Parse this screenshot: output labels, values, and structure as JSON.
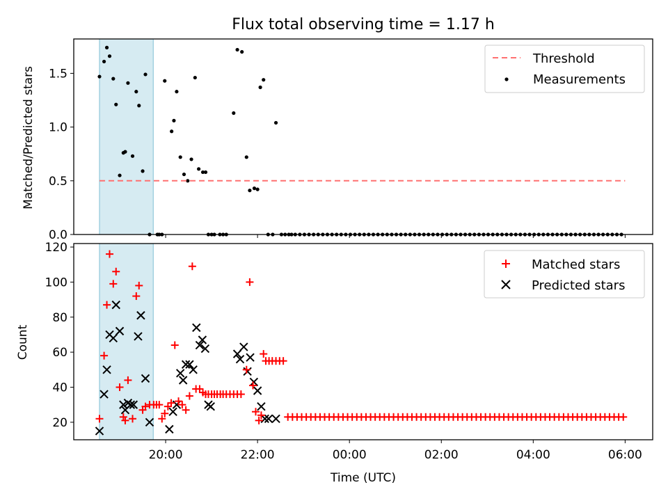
{
  "chart_data": {
    "type": "scatter",
    "title": "Flux total observing time = 1.17 h",
    "xlabel": "Time (UTC)",
    "x_ticks": [
      "20:00",
      "22:00",
      "00:00",
      "02:00",
      "04:00",
      "06:00"
    ],
    "x_range_hours": [
      18.0,
      30.6
    ],
    "highlight_span_hours": [
      18.56,
      19.73
    ],
    "colors": {
      "threshold": "#ff7070",
      "matched": "#ff0000",
      "predicted": "#000000",
      "measurement": "#000000",
      "span": "#add8e6"
    },
    "panels": [
      {
        "ylabel": "Matched/Predicted stars",
        "ylim": [
          0,
          1.82
        ],
        "yticks": [
          "0.0",
          "0.5",
          "1.0",
          "1.5"
        ],
        "legend": [
          "Threshold",
          "Measurements"
        ],
        "legend_position": "top-right",
        "threshold": {
          "name": "Threshold",
          "y": 0.5,
          "x_range_hours": [
            18.56,
            30.0
          ]
        },
        "measurements": {
          "name": "Measurements",
          "x": [
            18.56,
            18.66,
            18.72,
            18.78,
            18.86,
            18.92,
            19.0,
            19.08,
            19.12,
            19.18,
            19.28,
            19.36,
            19.42,
            19.5,
            19.56,
            19.65,
            19.82,
            19.86,
            19.92,
            19.98,
            20.13,
            20.18,
            20.24,
            20.32,
            20.4,
            20.48,
            20.56,
            20.64,
            20.72,
            20.81,
            20.87,
            20.93,
            21.0,
            21.06,
            21.18,
            21.25,
            21.32,
            21.48,
            21.56,
            21.66,
            21.76,
            21.83,
            21.93,
            22.0,
            22.06,
            22.13,
            22.23,
            22.33,
            22.4,
            22.52,
            22.6,
            22.68,
            22.74
          ],
          "y": [
            1.47,
            1.61,
            1.74,
            1.66,
            1.45,
            1.21,
            0.55,
            0.76,
            0.77,
            1.41,
            0.73,
            1.33,
            1.2,
            0.59,
            1.49,
            0.0,
            0.0,
            0.0,
            0.0,
            1.43,
            0.96,
            1.06,
            1.33,
            0.72,
            0.56,
            0.5,
            0.7,
            1.46,
            0.61,
            0.58,
            0.58,
            0.0,
            0.0,
            0.0,
            0.0,
            0.0,
            0.0,
            1.13,
            1.72,
            1.7,
            0.72,
            0.41,
            0.43,
            0.42,
            1.37,
            1.44,
            0.0,
            0.0,
            1.04,
            0.0,
            0.0,
            0.0,
            0.0
          ],
          "tail_zero_from_hours": 22.82,
          "tail_zero_step_hours": 0.1,
          "tail_zero_to_hours": 30.0
        }
      },
      {
        "ylabel": "Count",
        "ylim": [
          10,
          122
        ],
        "yticks": [
          "20",
          "40",
          "60",
          "80",
          "100",
          "120"
        ],
        "legend": [
          "Matched stars",
          "Predicted stars"
        ],
        "legend_position": "top-right",
        "matched": {
          "name": "Matched stars",
          "x": [
            18.56,
            18.66,
            18.72,
            18.78,
            18.86,
            18.92,
            19.0,
            19.08,
            19.12,
            19.18,
            19.28,
            19.36,
            19.42,
            19.5,
            19.56,
            19.65,
            19.74,
            19.8,
            19.86,
            19.92,
            19.98,
            20.05,
            20.12,
            20.2,
            20.28,
            20.36,
            20.44,
            20.52,
            20.58,
            20.66,
            20.74,
            20.81,
            20.87,
            20.93,
            21.0,
            21.06,
            21.12,
            21.19,
            21.25,
            21.32,
            21.4,
            21.48,
            21.56,
            21.64,
            21.76,
            21.83,
            21.9,
            21.96,
            22.03,
            22.08,
            22.13,
            22.18,
            22.25,
            22.32,
            22.4,
            22.48,
            22.56
          ],
          "y": [
            22,
            58,
            87,
            116,
            99,
            106,
            40,
            23,
            21,
            44,
            22,
            92,
            98,
            27,
            29,
            30,
            30,
            30,
            30,
            22,
            25,
            29,
            31,
            64,
            32,
            30,
            27,
            35,
            109,
            39,
            39,
            37,
            36,
            36,
            36,
            36,
            36,
            36,
            36,
            36,
            36,
            36,
            36,
            36,
            50,
            100,
            41,
            26,
            21,
            24,
            59,
            55,
            55,
            55,
            55,
            55,
            55
          ],
          "tail_from_hours": 22.66,
          "tail_step_hours": 0.1,
          "tail_to_hours": 30.0,
          "tail_value": 23
        },
        "predicted": {
          "name": "Predicted stars",
          "x": [
            18.56,
            18.66,
            18.72,
            18.78,
            18.86,
            18.92,
            19.0,
            19.08,
            19.12,
            19.18,
            19.24,
            19.3,
            19.4,
            19.46,
            19.56,
            19.65,
            20.08,
            20.16,
            20.24,
            20.32,
            20.38,
            20.44,
            20.52,
            20.6,
            20.67,
            20.74,
            20.8,
            20.86,
            20.93,
            20.98,
            21.56,
            21.62,
            21.7,
            21.78,
            21.84,
            21.92,
            22.0,
            22.08,
            22.16,
            22.24,
            22.4
          ],
          "y": [
            15,
            36,
            50,
            70,
            68,
            87,
            72,
            30,
            27,
            31,
            30,
            30,
            69,
            81,
            45,
            20,
            16,
            26,
            30,
            48,
            44,
            53,
            53,
            50,
            74,
            64,
            67,
            62,
            30,
            29,
            59,
            56,
            63,
            49,
            57,
            43,
            38,
            29,
            22,
            22,
            22
          ],
          "tail_note": "",
          "tail_from_hours": 22.56,
          "tail_to_hours": 22.56,
          "tail_value": 22
        }
      }
    ]
  }
}
